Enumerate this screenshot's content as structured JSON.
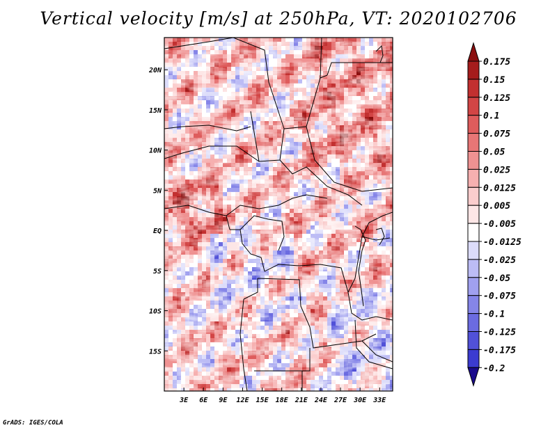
{
  "title": "Vertical velocity [m/s] at 250hPa, VT: 2020102706",
  "footer": "GrADS: IGES/COLA",
  "colors": {
    "scale": [
      "#1a0a8c",
      "#2b23b3",
      "#3b3bd0",
      "#5151d8",
      "#6b6be0",
      "#8585e8",
      "#a0a0ef",
      "#bcbcf5",
      "#dcdcfa",
      "#ffffff",
      "#fde6e6",
      "#fbcdcd",
      "#f6b0b0",
      "#ef9292",
      "#e77676",
      "#de5c5c",
      "#d24545",
      "#c23030",
      "#a51c1c",
      "#8b0f0f"
    ],
    "border": "#000000",
    "background": "#ffffff"
  },
  "chart_data": {
    "type": "heatmap",
    "title": "Vertical velocity [m/s] at 250hPa, VT: 2020102706",
    "variable": "Vertical velocity",
    "units": "m/s",
    "level": "250hPa",
    "valid_time": "2020102706",
    "x_range": [
      0,
      35
    ],
    "y_range": [
      -20,
      24
    ],
    "x_ticks": [
      {
        "value": 3,
        "label": "3E"
      },
      {
        "value": 6,
        "label": "6E"
      },
      {
        "value": 9,
        "label": "9E"
      },
      {
        "value": 12,
        "label": "12E"
      },
      {
        "value": 15,
        "label": "15E"
      },
      {
        "value": 18,
        "label": "18E"
      },
      {
        "value": 21,
        "label": "21E"
      },
      {
        "value": 24,
        "label": "24E"
      },
      {
        "value": 27,
        "label": "27E"
      },
      {
        "value": 30,
        "label": "30E"
      },
      {
        "value": 33,
        "label": "33E"
      }
    ],
    "y_ticks": [
      {
        "value": 20,
        "label": "20N"
      },
      {
        "value": 15,
        "label": "15N"
      },
      {
        "value": 10,
        "label": "10N"
      },
      {
        "value": 5,
        "label": "5N"
      },
      {
        "value": 0,
        "label": "EQ"
      },
      {
        "value": -5,
        "label": "5S"
      },
      {
        "value": -10,
        "label": "10S"
      },
      {
        "value": -15,
        "label": "15S"
      }
    ],
    "colorbar_labels": [
      "0.175",
      "0.15",
      "0.125",
      "0.1",
      "0.075",
      "0.05",
      "0.025",
      "0.0125",
      "0.005",
      "-0.005",
      "-0.0125",
      "-0.025",
      "-0.05",
      "-0.075",
      "-0.1",
      "-0.125",
      "-0.175",
      "-0.2"
    ],
    "colorbar_levels": [
      0.175,
      0.15,
      0.125,
      0.1,
      0.075,
      0.05,
      0.025,
      0.0125,
      0.005,
      -0.005,
      -0.0125,
      -0.025,
      -0.05,
      -0.075,
      -0.1,
      -0.125,
      -0.175,
      -0.2
    ]
  }
}
